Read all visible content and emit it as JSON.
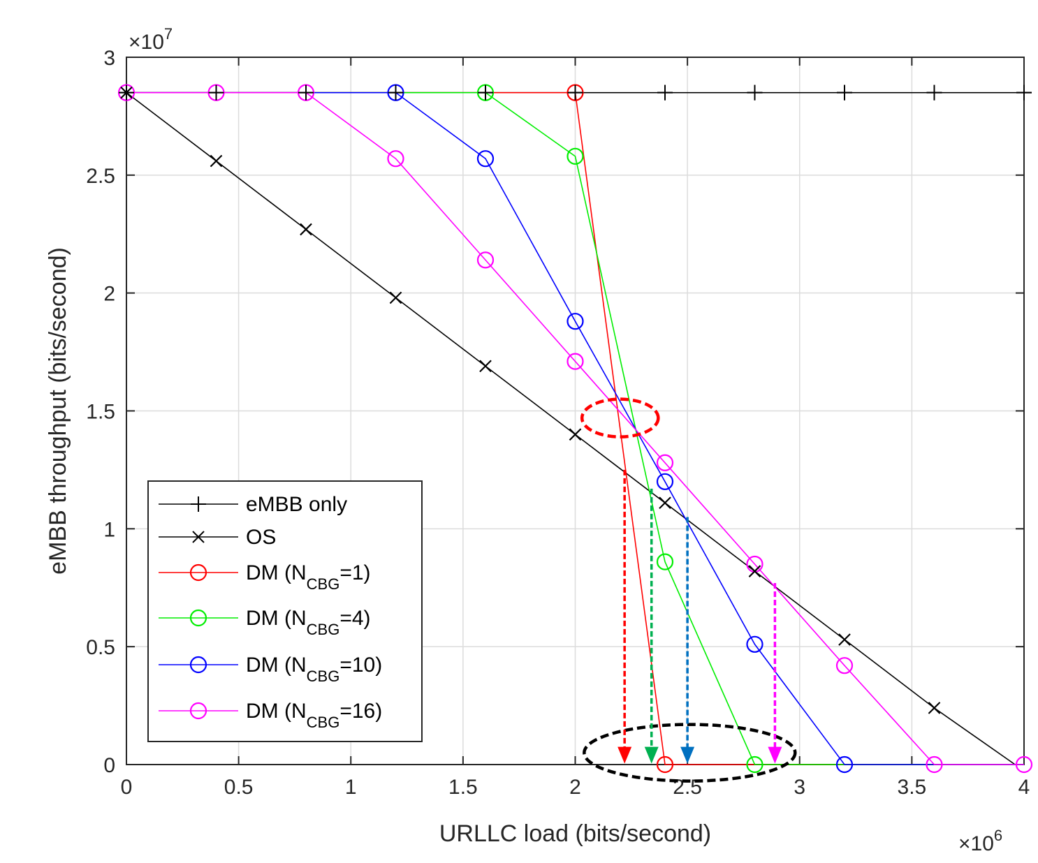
{
  "chart_data": {
    "type": "line",
    "xlabel": "URLLC load (bits/second)",
    "ylabel": "eMBB throughput (bits/second)",
    "x_multiplier": {
      "base": "×10",
      "exp": "6"
    },
    "y_multiplier": {
      "base": "×10",
      "exp": "7"
    },
    "xlim": [
      0,
      4
    ],
    "ylim": [
      0,
      3
    ],
    "xticks": [
      "0",
      "0.5",
      "1",
      "1.5",
      "2",
      "2.5",
      "3",
      "3.5",
      "4"
    ],
    "yticks": [
      "0",
      "0.5",
      "1",
      "1.5",
      "2",
      "2.5",
      "3"
    ],
    "grid": true,
    "legend_position": "bottom-left",
    "series": [
      {
        "name": "eMBB only",
        "label_main": "eMBB only",
        "label_sub": "",
        "label_tail": "",
        "color": "#000000",
        "marker": "plus",
        "x": [
          0,
          0.4,
          0.8,
          1.2,
          1.6,
          2.0,
          2.4,
          2.8,
          3.2,
          3.6,
          4.0
        ],
        "y": [
          2.85,
          2.85,
          2.85,
          2.85,
          2.85,
          2.85,
          2.85,
          2.85,
          2.85,
          2.85,
          2.85
        ]
      },
      {
        "name": "OS",
        "label_main": "OS",
        "label_sub": "",
        "label_tail": "",
        "color": "#000000",
        "marker": "x",
        "x": [
          0,
          0.4,
          0.8,
          1.2,
          1.6,
          2.0,
          2.4,
          2.8,
          3.2,
          3.6,
          3.96
        ],
        "y": [
          2.85,
          2.56,
          2.27,
          1.98,
          1.69,
          1.4,
          1.11,
          0.82,
          0.53,
          0.24,
          0
        ],
        "marker_count": 10
      },
      {
        "name": "DM (NCBG=1)",
        "label_main": "DM (N",
        "label_sub": "CBG",
        "label_tail": "=1)",
        "color": "#ff0000",
        "marker": "circle",
        "x": [
          0,
          0.4,
          0.8,
          1.2,
          1.6,
          2.0,
          2.4,
          2.8,
          3.2,
          3.6,
          4.0
        ],
        "y": [
          2.85,
          2.85,
          2.85,
          2.85,
          2.85,
          2.85,
          0,
          0,
          0,
          0,
          0
        ],
        "marker_x": [
          2.0,
          2.4
        ]
      },
      {
        "name": "DM (NCBG=4)",
        "label_main": "DM (N",
        "label_sub": "CBG",
        "label_tail": "=4)",
        "color": "#00ee00",
        "marker": "circle",
        "x": [
          0,
          0.4,
          0.8,
          1.2,
          1.6,
          2.0,
          2.4,
          2.8,
          3.2,
          3.6,
          4.0
        ],
        "y": [
          2.85,
          2.85,
          2.85,
          2.85,
          2.85,
          2.58,
          0.86,
          0,
          0,
          0,
          0
        ],
        "marker_x": [
          1.6,
          2.0,
          2.4,
          2.8
        ]
      },
      {
        "name": "DM (NCBG=10)",
        "label_main": "DM (N",
        "label_sub": "CBG",
        "label_tail": "=10)",
        "color": "#0000ff",
        "marker": "circle",
        "x": [
          0,
          0.4,
          0.8,
          1.2,
          1.6,
          2.0,
          2.4,
          2.8,
          3.2,
          3.6,
          4.0
        ],
        "y": [
          2.85,
          2.85,
          2.85,
          2.85,
          2.57,
          1.88,
          1.2,
          0.51,
          0,
          0,
          0
        ],
        "marker_x": [
          1.2,
          1.6,
          2.0,
          2.4,
          2.8,
          3.2
        ]
      },
      {
        "name": "DM (NCBG=16)",
        "label_main": "DM (N",
        "label_sub": "CBG",
        "label_tail": "=16)",
        "color": "#ff00ff",
        "marker": "circle",
        "x": [
          0,
          0.4,
          0.8,
          1.2,
          1.6,
          2.0,
          2.4,
          2.8,
          3.2,
          3.6,
          4.0
        ],
        "y": [
          2.85,
          2.85,
          2.85,
          2.57,
          2.14,
          1.71,
          1.28,
          0.85,
          0.42,
          0,
          0
        ],
        "marker_x": [
          0,
          0.4,
          0.8,
          1.2,
          1.6,
          2.0,
          2.4,
          2.8,
          3.2,
          3.6,
          4.0
        ]
      }
    ],
    "annotations": {
      "crossing_ellipse": {
        "cx": 2.2,
        "cy": 1.47,
        "rx": 0.17,
        "ry": 0.08,
        "color": "#ff0000"
      },
      "bottom_ellipse": {
        "cx": 2.51,
        "cy": 0.05,
        "rx": 0.47,
        "ry": 0.12,
        "color": "#000000"
      },
      "arrows": [
        {
          "x": 2.22,
          "y_from": 1.25,
          "y_to": 0.01,
          "color": "#ff0000"
        },
        {
          "x": 2.34,
          "y_from": 1.17,
          "y_to": 0.01,
          "color": "#00b050"
        },
        {
          "x": 2.5,
          "y_from": 1.05,
          "y_to": 0.01,
          "color": "#0070c0"
        },
        {
          "x": 2.89,
          "y_from": 0.77,
          "y_to": 0.01,
          "color": "#ff00ff"
        }
      ]
    }
  }
}
